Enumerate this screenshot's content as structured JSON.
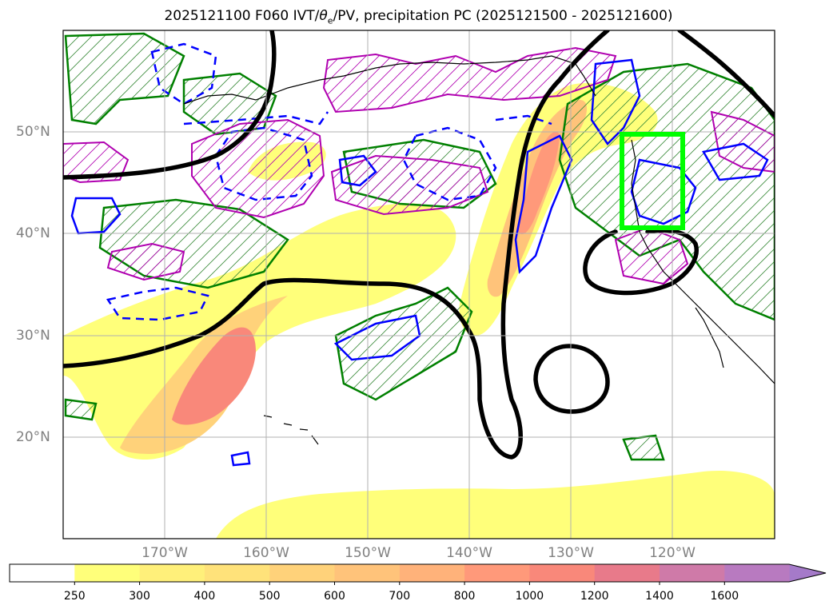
{
  "title": {
    "prefix": "2025121100 F060 IVT/",
    "theta": "θ",
    "theta_sub": "e",
    "suffix": "/PV, precipitation PC (2025121500 - 2025121600)"
  },
  "map": {
    "lon_range": [
      -180,
      -110
    ],
    "lat_range": [
      10,
      60
    ],
    "grid": true,
    "lat_labels": [
      "20°N",
      "30°N",
      "40°N",
      "50°N"
    ],
    "lon_labels": [
      "170°W",
      "160°W",
      "150°W",
      "140°W",
      "130°W",
      "120°W"
    ],
    "highlight_box": {
      "lon": [
        -125,
        -119
      ],
      "lat": [
        40.5,
        50
      ],
      "color": "#00ff00"
    }
  },
  "legend": {
    "variable": "IVT",
    "levels": [
      "250",
      "300",
      "400",
      "500",
      "600",
      "700",
      "800",
      "1000",
      "1200",
      "1400",
      "1600"
    ],
    "colors": [
      "#ffff7a",
      "#fff07a",
      "#ffe27a",
      "#ffd27a",
      "#ffc37a",
      "#ffb27a",
      "#ff997a",
      "#f9887a",
      "#e87a8a",
      "#cf7aa8",
      "#b87ac0",
      "#a57ac9"
    ],
    "extend": "max"
  }
}
